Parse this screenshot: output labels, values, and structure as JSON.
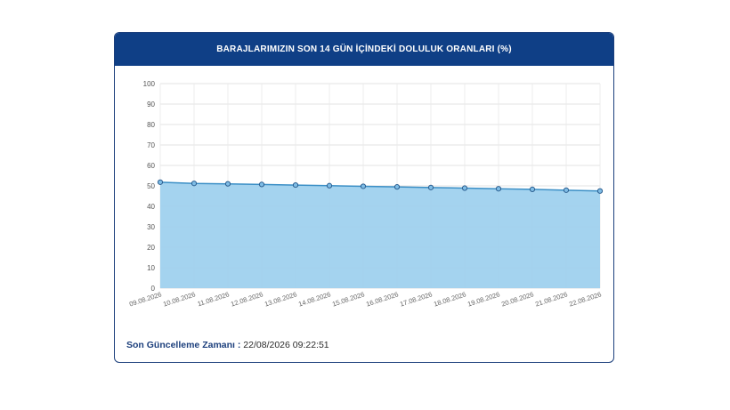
{
  "card": {
    "title": "BARAJLARIMIZIN SON 14 GÜN İÇİNDEKİ DOLULUK ORANLARI (%)"
  },
  "footer": {
    "label": "Son Güncelleme Zamanı :",
    "value": "22/08/2026 09:22:51"
  },
  "colors": {
    "header_bg": "#0f3f86",
    "area_fill": "#9fd1ee",
    "line": "#3b8fc6",
    "marker_fill": "#7fbde6",
    "marker_stroke": "#2a5d8f",
    "label_blue": "#1c3f7c"
  },
  "chart_data": {
    "type": "area",
    "categories": [
      "09.08.2026",
      "10.08.2026",
      "11.08.2026",
      "12.08.2026",
      "13.08.2026",
      "14.08.2026",
      "15.08.2026",
      "16.08.2026",
      "17.08.2026",
      "18.08.2026",
      "19.08.2026",
      "20.08.2026",
      "21.08.2026",
      "22.08.2026"
    ],
    "values": [
      51.8,
      51.2,
      51.0,
      50.7,
      50.4,
      50.1,
      49.8,
      49.5,
      49.2,
      48.9,
      48.6,
      48.3,
      47.9,
      47.5
    ],
    "yticks": [
      0,
      10,
      20,
      30,
      40,
      50,
      60,
      70,
      80,
      90,
      100
    ],
    "ylim": [
      0,
      100
    ],
    "grid": true,
    "legend": "none"
  }
}
